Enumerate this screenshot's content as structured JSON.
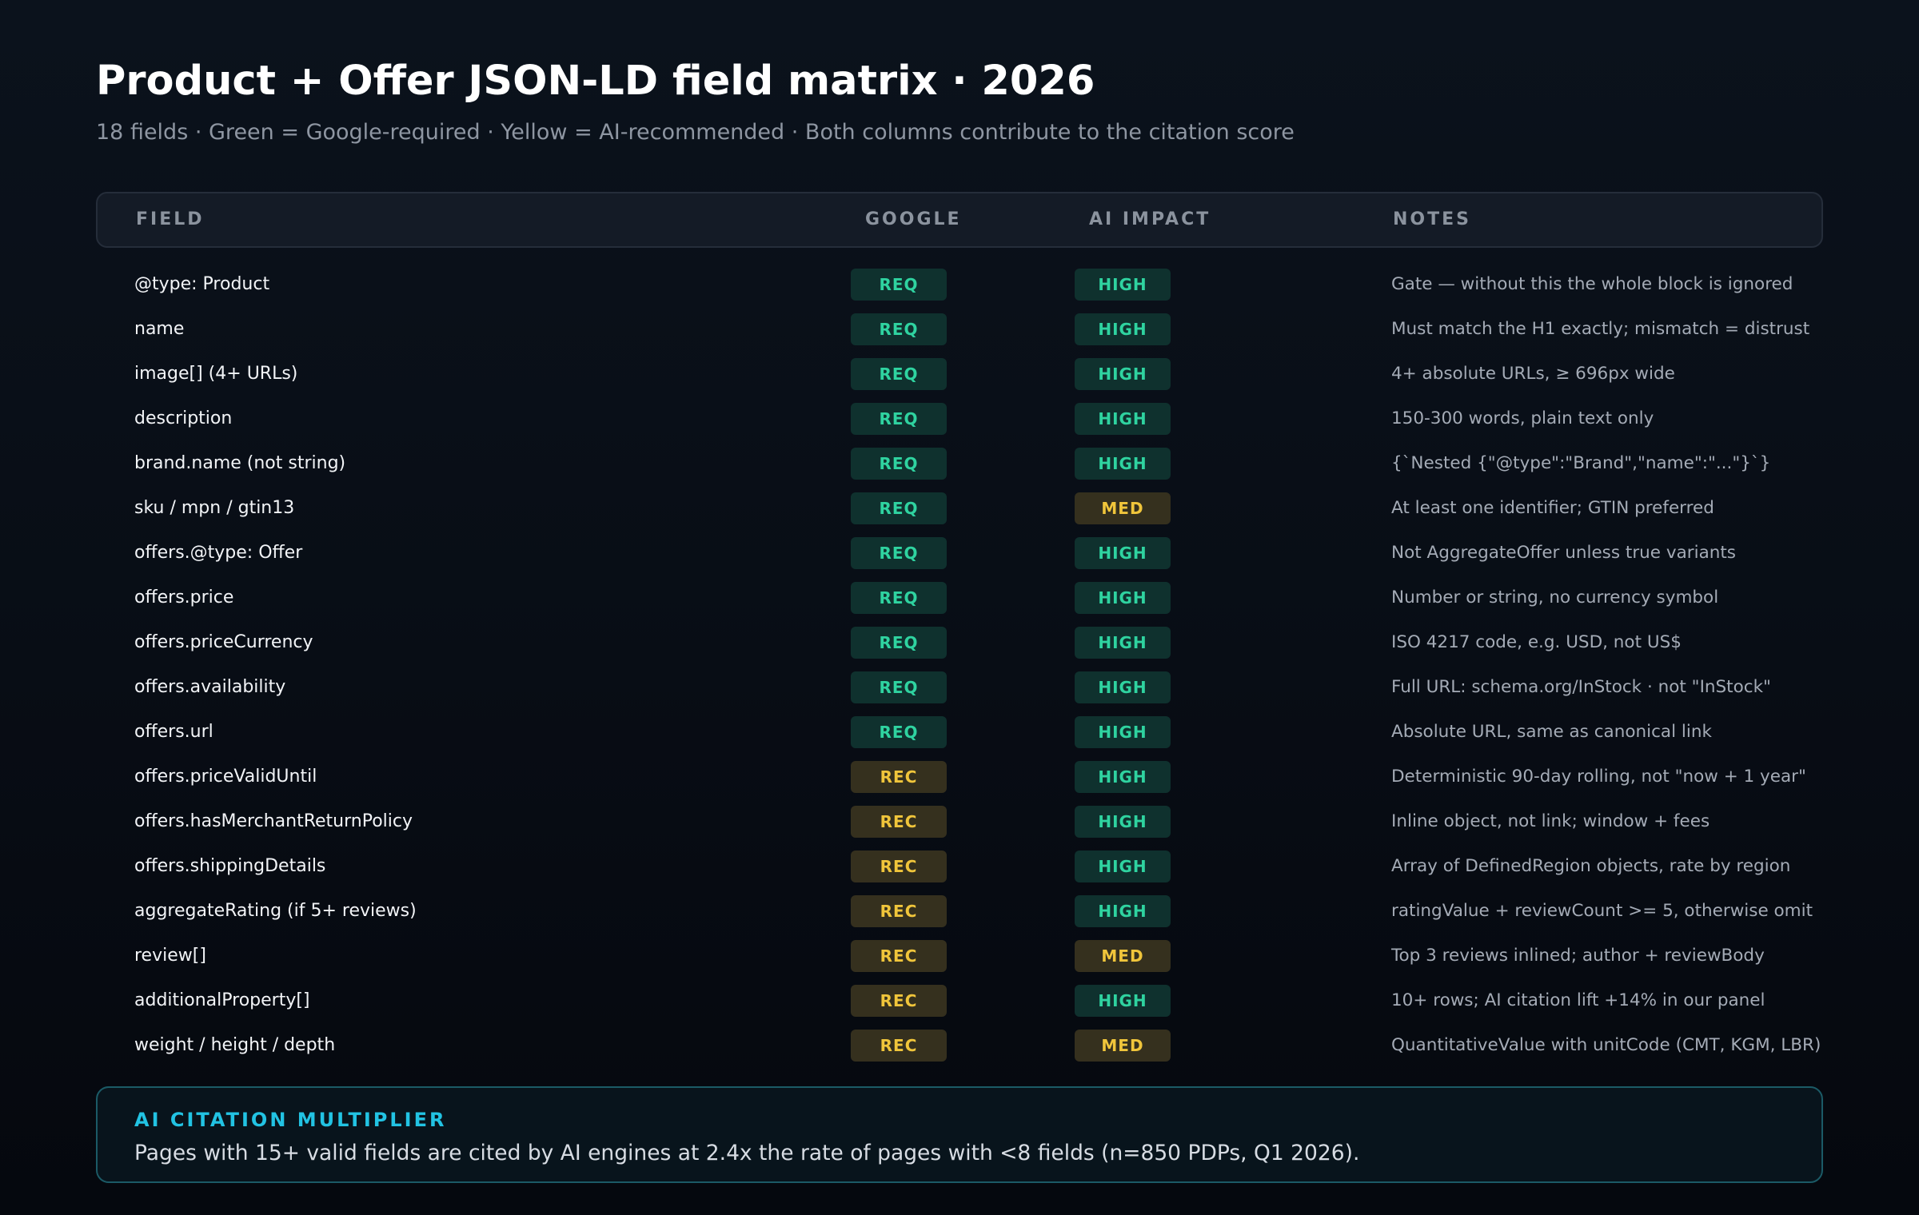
{
  "header": {
    "title": "Product + Offer JSON-LD field matrix · 2026",
    "subtitle": "18 fields · Green = Google-required · Yellow = AI-recommended · Both columns contribute to the citation score"
  },
  "colors": {
    "required_green": "#2fd3a0",
    "recommended_yellow": "#f0c53b",
    "accent_cyan": "#22c3e3"
  },
  "table": {
    "columns": [
      "FIELD",
      "GOOGLE",
      "AI IMPACT",
      "NOTES"
    ],
    "rows": [
      {
        "field": "@type: Product",
        "google": "REQ",
        "ai": "HIGH",
        "notes": "Gate — without this the whole block is ignored"
      },
      {
        "field": "name",
        "google": "REQ",
        "ai": "HIGH",
        "notes": "Must match the H1 exactly; mismatch = distrust"
      },
      {
        "field": "image[] (4+ URLs)",
        "google": "REQ",
        "ai": "HIGH",
        "notes": "4+ absolute URLs, ≥ 696px wide"
      },
      {
        "field": "description",
        "google": "REQ",
        "ai": "HIGH",
        "notes": "150-300 words, plain text only"
      },
      {
        "field": "brand.name (not string)",
        "google": "REQ",
        "ai": "HIGH",
        "notes": "{`Nested {\"@type\":\"Brand\",\"name\":\"...\"}`}"
      },
      {
        "field": "sku / mpn / gtin13",
        "google": "REQ",
        "ai": "MED",
        "notes": "At least one identifier; GTIN preferred"
      },
      {
        "field": "offers.@type: Offer",
        "google": "REQ",
        "ai": "HIGH",
        "notes": "Not AggregateOffer unless true variants"
      },
      {
        "field": "offers.price",
        "google": "REQ",
        "ai": "HIGH",
        "notes": "Number or string, no currency symbol"
      },
      {
        "field": "offers.priceCurrency",
        "google": "REQ",
        "ai": "HIGH",
        "notes": "ISO 4217 code, e.g. USD, not US$"
      },
      {
        "field": "offers.availability",
        "google": "REQ",
        "ai": "HIGH",
        "notes": "Full URL: schema.org/InStock · not \"InStock\""
      },
      {
        "field": "offers.url",
        "google": "REQ",
        "ai": "HIGH",
        "notes": "Absolute URL, same as canonical link"
      },
      {
        "field": "offers.priceValidUntil",
        "google": "REC",
        "ai": "HIGH",
        "notes": "Deterministic 90-day rolling, not \"now + 1 year\""
      },
      {
        "field": "offers.hasMerchantReturnPolicy",
        "google": "REC",
        "ai": "HIGH",
        "notes": "Inline object, not link; window + fees"
      },
      {
        "field": "offers.shippingDetails",
        "google": "REC",
        "ai": "HIGH",
        "notes": "Array of DefinedRegion objects, rate by region"
      },
      {
        "field": "aggregateRating (if 5+ reviews)",
        "google": "REC",
        "ai": "HIGH",
        "notes": "ratingValue + reviewCount >= 5, otherwise omit"
      },
      {
        "field": "review[]",
        "google": "REC",
        "ai": "MED",
        "notes": "Top 3 reviews inlined; author + reviewBody"
      },
      {
        "field": "additionalProperty[]",
        "google": "REC",
        "ai": "HIGH",
        "notes": "10+ rows; AI citation lift +14% in our panel"
      },
      {
        "field": "weight / height / depth",
        "google": "REC",
        "ai": "MED",
        "notes": "QuantitativeValue with unitCode (CMT, KGM, LBR)"
      }
    ]
  },
  "callout": {
    "title": "AI CITATION MULTIPLIER",
    "body": "Pages with 15+ valid fields are cited by AI engines at 2.4x the rate of pages with <8 fields (n=850 PDPs, Q1 2026)."
  }
}
